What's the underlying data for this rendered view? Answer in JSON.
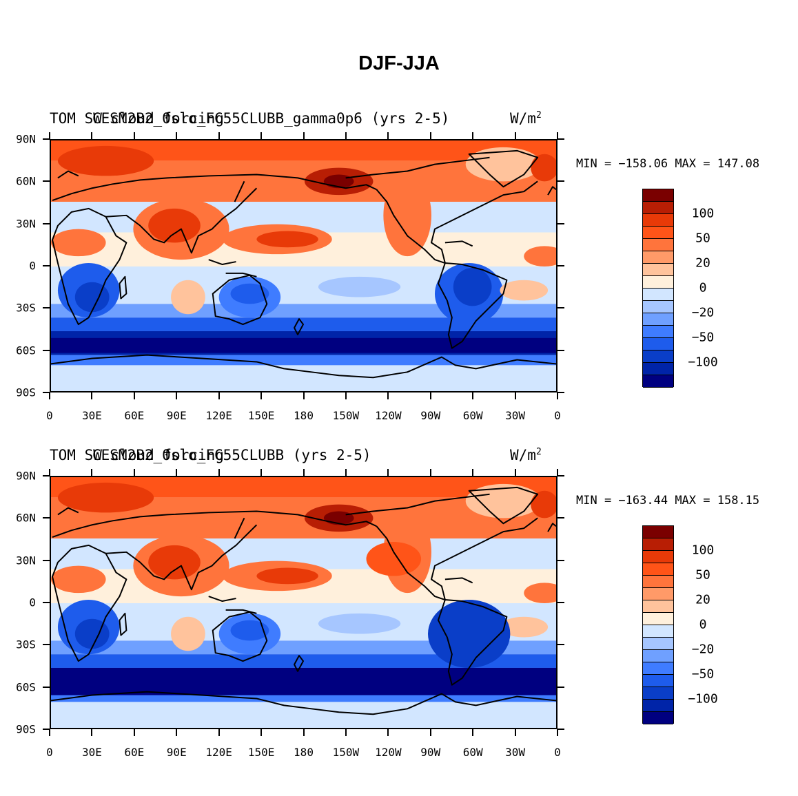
{
  "figure": {
    "title": "DJF-JJA"
  },
  "colors": {
    "levels": [
      "#000080",
      "#0024a8",
      "#0a3ec8",
      "#1e5cec",
      "#3f7cff",
      "#6fa0ff",
      "#a6c6ff",
      "#d2e6ff",
      "#fff0dc",
      "#ffc39c",
      "#ff9a68",
      "#ff743c",
      "#ff5418",
      "#e83a08",
      "#b81e04",
      "#7a0000"
    ],
    "coast": "#000000"
  },
  "axes": {
    "lat_labels": [
      "90N",
      "60N",
      "30N",
      "0",
      "30S",
      "60S",
      "90S"
    ],
    "lon_labels": [
      "0",
      "30E",
      "60E",
      "90E",
      "120E",
      "150E",
      "180",
      "150W",
      "120W",
      "90W",
      "60W",
      "30W",
      "0"
    ]
  },
  "colorbar": {
    "labels": [
      "100",
      "50",
      "20",
      "0",
      "−20",
      "−50",
      "−100"
    ]
  },
  "panels": [
    {
      "header_left": "TOM SW cloud forcing",
      "header_mid": "CESM2B2_0slo_FC55CLUBB_gamma0p6 (yrs 2-5)",
      "units": "W/m",
      "units_sup": "2",
      "min_label": "MIN = −158.06",
      "max_label": "MAX = 147.08",
      "stats": {
        "min": -158.06,
        "max": 147.08
      }
    },
    {
      "header_left": "TOM SW cloud forcing",
      "header_mid": "CESM2B2_0slo_FC55CLUBB (yrs 2-5)",
      "units": "W/m",
      "units_sup": "2",
      "min_label": "MIN = −163.44",
      "max_label": "MAX = 158.15",
      "stats": {
        "min": -163.44,
        "max": 158.15
      }
    }
  ]
}
